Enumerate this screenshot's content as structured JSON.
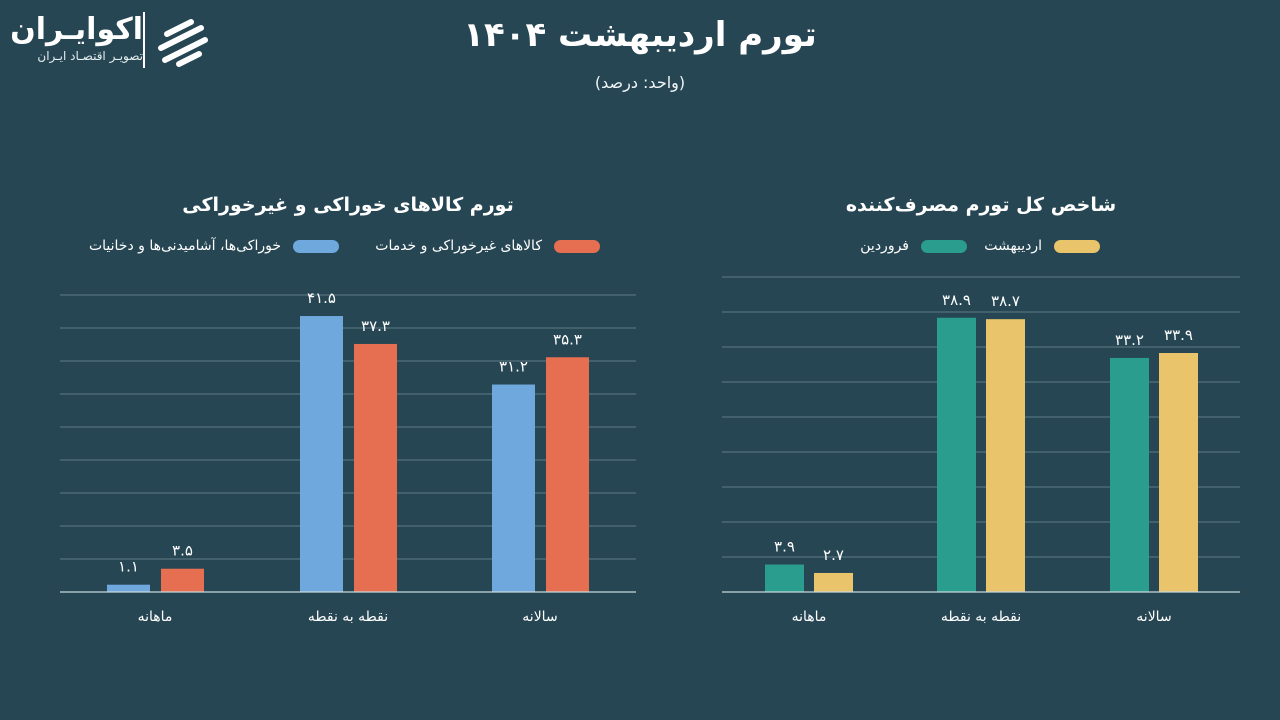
{
  "header": {
    "title": "تورم اردیبهشت ۱۴۰۴",
    "unit": "(واحد: درصد)"
  },
  "logo": {
    "name": "اکوایـران",
    "tagline": "تصویـر اقتصـاد ایـران",
    "icon": "ecoiran-logo-icon"
  },
  "colors": {
    "background": "#264653",
    "gridline": "#5d7c85",
    "food": "#6fa8dc",
    "nonfood": "#e76f51",
    "farvardin": "#2a9d8f",
    "ordibehesht": "#e9c46a"
  },
  "chart_data": [
    {
      "type": "bar",
      "title": "تورم کالاهای خوراکی و غیرخوراکی",
      "categories": [
        "ماهانه",
        "نقطه به نقطه",
        "سالانه"
      ],
      "series": [
        {
          "name": "خوراکی‌ها، آشامیدنی‌ها و دخانیات",
          "values": [
            1.1,
            41.5,
            31.2
          ],
          "labels": [
            "۱.۱",
            "۴۱.۵",
            "۳۱.۲"
          ],
          "color": "#6fa8dc"
        },
        {
          "name": "کالاهای غیرخوراکی و خدمات",
          "values": [
            3.5,
            37.3,
            35.3
          ],
          "labels": [
            "۳.۵",
            "۳۷.۳",
            "۳۵.۳"
          ],
          "color": "#e76f51"
        }
      ],
      "ylim": [
        0,
        45
      ],
      "grid": true,
      "legend": "top"
    },
    {
      "type": "bar",
      "title": "شاخص کل تورم مصرف‌کننده",
      "categories": [
        "ماهانه",
        "نقطه به نقطه",
        "سالانه"
      ],
      "series": [
        {
          "name": "فروردین",
          "values": [
            3.9,
            38.9,
            33.2
          ],
          "labels": [
            "۳.۹",
            "۳۸.۹",
            "۳۳.۲"
          ],
          "color": "#2a9d8f"
        },
        {
          "name": "اردیبهشت",
          "values": [
            2.7,
            38.7,
            33.9
          ],
          "labels": [
            "۲.۷",
            "۳۸.۷",
            "۳۳.۹"
          ],
          "color": "#e9c46a"
        }
      ],
      "ylim": [
        0,
        45
      ],
      "grid": true,
      "legend": "top"
    }
  ]
}
